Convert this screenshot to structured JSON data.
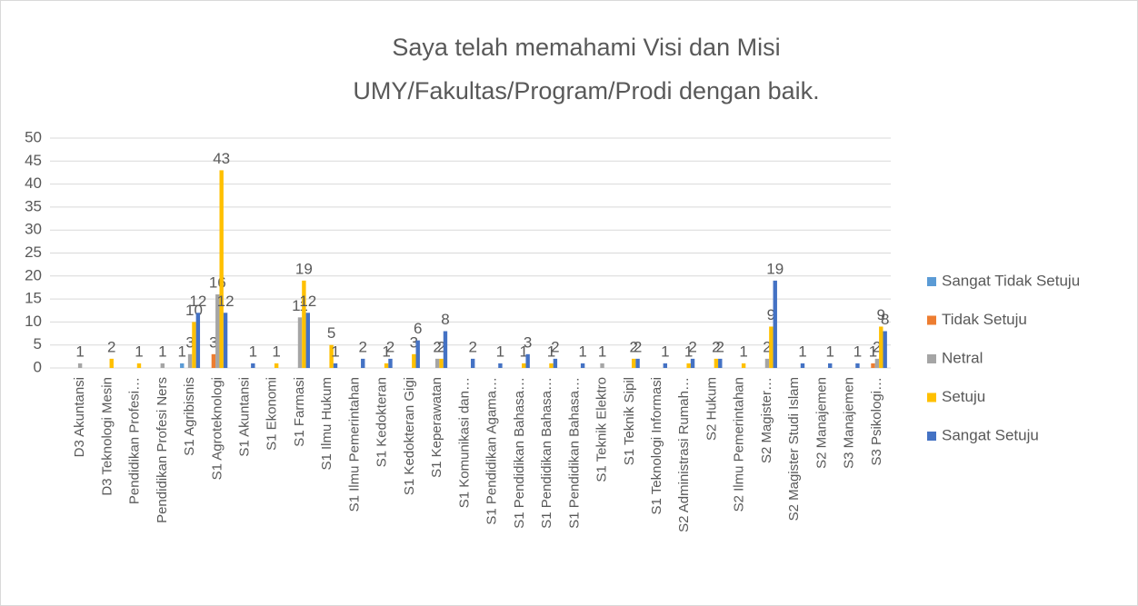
{
  "chart_data": {
    "type": "bar",
    "title": "Saya telah memahami Visi dan Misi UMY/Fakultas/Program/Prodi dengan baik.",
    "categories": [
      "D3 Akuntansi",
      "D3 Teknologi Mesin",
      "Pendidikan Profesi…",
      "Pendidikan Profesi Ners",
      "S1 Agribisnis",
      "S1 Agroteknologi",
      "S1 Akuntansi",
      "S1 Ekonomi",
      "S1 Farmasi",
      "S1 Ilmu Hukum",
      "S1 Ilmu Pemerintahan",
      "S1 Kedokteran",
      "S1 Kedokteran Gigi",
      "S1 Keperawatan",
      "S1 Komunikasi dan…",
      "S1 Pendidikan Agama…",
      "S1 Pendidikan Bahasa…",
      "S1 Pendidikan Bahasa…",
      "S1 Pendidikan Bahasa…",
      "S1 Teknik Elektro",
      "S1 Teknik Sipil",
      "S1 Teknologi Informasi",
      "S2 Administrasi Rumah…",
      "S2 Hukum",
      "S2 Ilmu Pemerintahan",
      "S2 Magister…",
      "S2 Magister Studi Islam",
      "S2 Manajemen",
      "S3 Manajemen",
      "S3 Psikologi…"
    ],
    "series": [
      {
        "name": "Sangat Tidak Setuju",
        "color": "#5b9bd5",
        "values": [
          null,
          null,
          null,
          null,
          1,
          null,
          null,
          null,
          null,
          null,
          null,
          null,
          null,
          null,
          null,
          null,
          null,
          null,
          null,
          null,
          null,
          null,
          null,
          null,
          null,
          null,
          null,
          null,
          null,
          null
        ]
      },
      {
        "name": "Tidak Setuju",
        "color": "#ed7d31",
        "values": [
          null,
          null,
          null,
          null,
          null,
          3,
          null,
          null,
          null,
          null,
          null,
          null,
          null,
          null,
          null,
          null,
          null,
          null,
          null,
          null,
          null,
          null,
          null,
          null,
          null,
          null,
          null,
          null,
          null,
          1
        ]
      },
      {
        "name": "Netral",
        "color": "#a5a5a5",
        "values": [
          1,
          null,
          null,
          1,
          3,
          16,
          null,
          null,
          11,
          null,
          null,
          null,
          null,
          2,
          null,
          null,
          null,
          null,
          null,
          1,
          null,
          null,
          null,
          null,
          null,
          2,
          null,
          null,
          null,
          2
        ]
      },
      {
        "name": "Setuju",
        "color": "#ffc000",
        "values": [
          null,
          2,
          1,
          null,
          10,
          43,
          null,
          1,
          19,
          5,
          null,
          1,
          3,
          2,
          null,
          null,
          1,
          1,
          null,
          null,
          2,
          null,
          1,
          2,
          1,
          9,
          null,
          null,
          null,
          9
        ]
      },
      {
        "name": "Sangat Setuju",
        "color": "#4472c4",
        "values": [
          null,
          null,
          null,
          null,
          12,
          12,
          1,
          null,
          12,
          1,
          2,
          2,
          6,
          8,
          2,
          1,
          3,
          2,
          1,
          null,
          2,
          1,
          2,
          2,
          null,
          19,
          1,
          1,
          1,
          8
        ]
      }
    ],
    "ylim": [
      0,
      50
    ],
    "yticks": [
      0,
      5,
      10,
      15,
      20,
      25,
      30,
      35,
      40,
      45,
      50
    ],
    "grid": true,
    "legend": "right"
  }
}
